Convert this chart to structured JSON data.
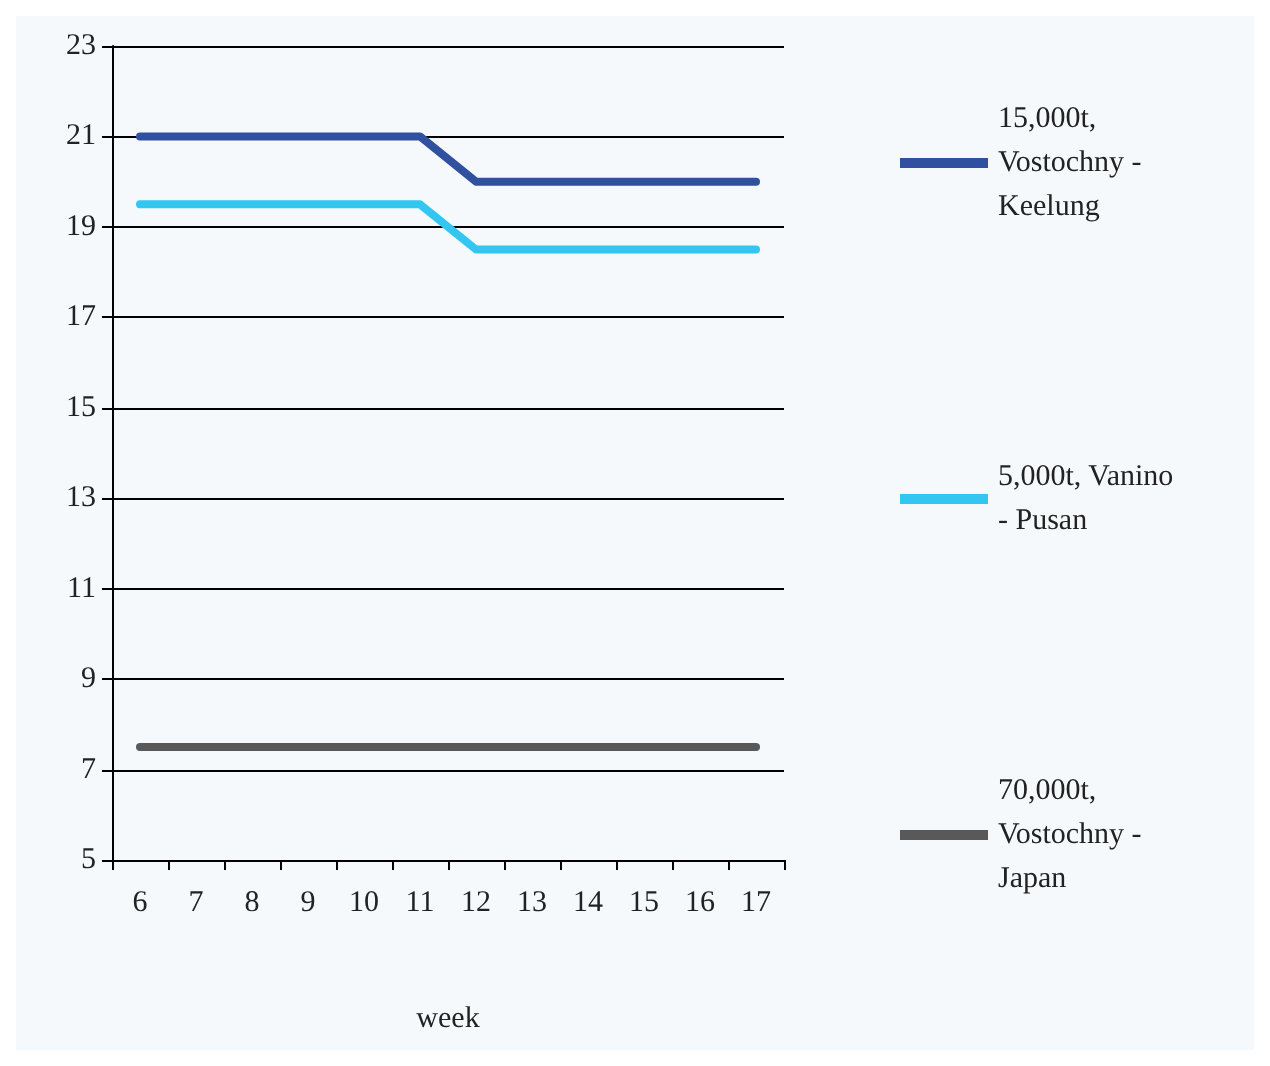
{
  "chart_data": {
    "type": "line",
    "xlabel": "week",
    "categories": [
      "6",
      "7",
      "8",
      "9",
      "10",
      "11",
      "12",
      "13",
      "14",
      "15",
      "16",
      "17"
    ],
    "ylim": [
      5,
      23
    ],
    "yticks": [
      5,
      7,
      9,
      11,
      13,
      15,
      17,
      19,
      21,
      23
    ],
    "grid": "y",
    "legend": "right",
    "marker": "none",
    "line_style": "solid",
    "series": [
      {
        "name": "15,000t, Vostochny - Keelung",
        "color": "#3050a0",
        "values": [
          21,
          21,
          21,
          21,
          21,
          21,
          20,
          20,
          20,
          20,
          20,
          20
        ]
      },
      {
        "name": "5,000t, Vanino - Pusan",
        "color": "#33c6f0",
        "values": [
          19.5,
          19.5,
          19.5,
          19.5,
          19.5,
          19.5,
          18.5,
          18.5,
          18.5,
          18.5,
          18.5,
          18.5
        ]
      },
      {
        "name": "70,000t, Vostochny - Japan",
        "color": "#595959",
        "values": [
          7.5,
          7.5,
          7.5,
          7.5,
          7.5,
          7.5,
          7.5,
          7.5,
          7.5,
          7.5,
          7.5,
          7.5
        ]
      }
    ]
  }
}
